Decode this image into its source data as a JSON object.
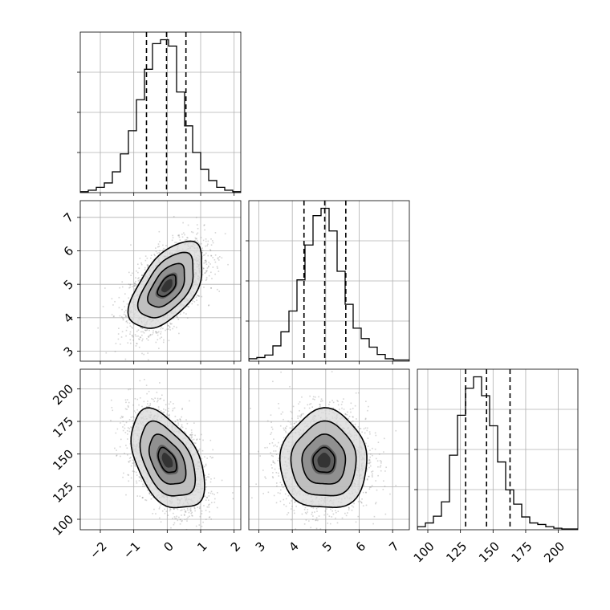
{
  "chart_data": {
    "type": "corner",
    "grid": true,
    "colors": {
      "scatter": "#888888",
      "hist": "#000000",
      "density": "#000000",
      "grid": "#b0b0b0"
    },
    "parameters": [
      {
        "range": [
          -2.6,
          2.2
        ],
        "ticks": [
          -2,
          -1,
          0,
          1,
          2
        ],
        "tick_labels": [
          "−2",
          "−1",
          "0",
          "1",
          "2"
        ],
        "quantiles": [
          -0.62,
          -0.02,
          0.56
        ]
      },
      {
        "range": [
          2.7,
          7.5
        ],
        "ticks": [
          3,
          4,
          5,
          6,
          7
        ],
        "tick_labels": [
          "3",
          "4",
          "5",
          "6",
          "7"
        ],
        "quantiles": [
          4.35,
          4.97,
          5.6
        ]
      },
      {
        "range": [
          92,
          215
        ],
        "ticks": [
          100,
          125,
          150,
          175,
          200
        ],
        "tick_labels": [
          "100",
          "125",
          "150",
          "175",
          "200"
        ],
        "quantiles": [
          129,
          145,
          163
        ]
      }
    ],
    "histograms": [
      {
        "bins_start": -2.6,
        "bin_width": 0.24,
        "counts": [
          2,
          5,
          11,
          20,
          43,
          80,
          128,
          192,
          255,
          308,
          316,
          303,
          208,
          138,
          83,
          48,
          25,
          11,
          5,
          2
        ]
      },
      {
        "bins_start": 2.7,
        "bin_width": 0.24,
        "counts": [
          4,
          6,
          10,
          25,
          48,
          82,
          133,
          190,
          238,
          250,
          213,
          147,
          93,
          54,
          37,
          23,
          11,
          4,
          2,
          2
        ]
      },
      {
        "bins_start": 92,
        "bin_width": 6.15,
        "counts": [
          4,
          9,
          18,
          37,
          99,
          152,
          188,
          203,
          178,
          138,
          90,
          53,
          34,
          17,
          9,
          7,
          4,
          2,
          1,
          1
        ]
      }
    ],
    "pairs": [
      {
        "x_param": 0,
        "y_param": 1,
        "center": [
          0.0,
          4.95
        ],
        "sigma": [
          0.55,
          0.65
        ],
        "rho": 0.55,
        "n_points": 2600
      },
      {
        "x_param": 0,
        "y_param": 2,
        "center": [
          0.0,
          145
        ],
        "sigma": [
          0.55,
          19
        ],
        "rho": -0.45,
        "n_points": 2600
      },
      {
        "x_param": 1,
        "y_param": 2,
        "center": [
          4.95,
          145
        ],
        "sigma": [
          0.65,
          19
        ],
        "rho": 0.0,
        "n_points": 2600
      }
    ],
    "contour_levels_sigma": [
      0.5,
      1.0,
      1.5,
      2.0
    ]
  }
}
